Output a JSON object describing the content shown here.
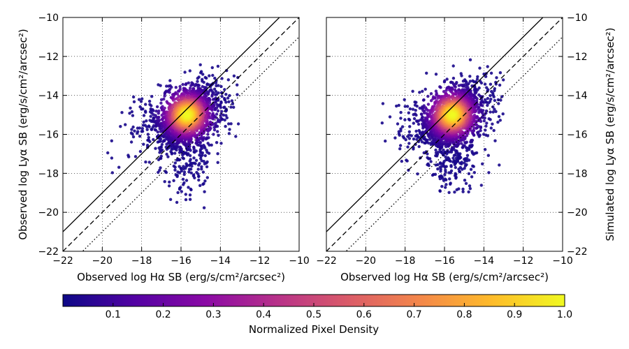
{
  "chart_data": [
    {
      "type": "scatter",
      "panel": "left",
      "xlabel": "Observed log Hα SB (erg/s/cm²/arcsec²)",
      "ylabel": "Observed log Lyα SB (erg/s/cm²/arcsec²)",
      "ylabel_side": "left",
      "xlim": [
        -22,
        -10
      ],
      "ylim": [
        -22,
        -10
      ],
      "xticks": [
        -22,
        -20,
        -18,
        -16,
        -14,
        -12,
        -10
      ],
      "yticks": [
        -22,
        -20,
        -18,
        -16,
        -14,
        -12,
        -10
      ],
      "grid": true,
      "reference_lines": [
        {
          "style": "solid",
          "offset": 1.0
        },
        {
          "style": "dashed",
          "offset": 0.0
        },
        {
          "style": "dotted",
          "offset": -1.0
        }
      ],
      "density_peak": {
        "x": -15.7,
        "y": -15.0
      },
      "point_cloud": {
        "x_range": [
          -20.0,
          -13.0
        ],
        "y_range": [
          -19.9,
          -12.4
        ]
      }
    },
    {
      "type": "scatter",
      "panel": "right",
      "xlabel": "Observed log Hα SB (erg/s/cm²/arcsec²)",
      "ylabel": "Simulated log Lyα SB (erg/s/cm²/arcsec²)",
      "ylabel_side": "right",
      "xlim": [
        -22,
        -10
      ],
      "ylim": [
        -22,
        -10
      ],
      "xticks": [
        -22,
        -20,
        -18,
        -16,
        -14,
        -12,
        -10
      ],
      "yticks": [
        -22,
        -20,
        -18,
        -16,
        -14,
        -12,
        -10
      ],
      "grid": true,
      "reference_lines": [
        {
          "style": "solid",
          "offset": 1.0
        },
        {
          "style": "dashed",
          "offset": 0.0
        },
        {
          "style": "dotted",
          "offset": -1.0
        }
      ],
      "density_peak": {
        "x": -15.6,
        "y": -15.0
      },
      "point_cloud": {
        "x_range": [
          -19.5,
          -13.0
        ],
        "y_range": [
          -19.0,
          -12.0
        ]
      }
    }
  ],
  "colorbar": {
    "label": "Normalized Pixel Density",
    "min": 0.0,
    "max": 1.0,
    "ticks": [
      "0.1",
      "0.2",
      "0.3",
      "0.4",
      "0.5",
      "0.6",
      "0.7",
      "0.8",
      "0.9",
      "1.0"
    ],
    "colormap": "plasma",
    "colors": [
      "#0d0887",
      "#5302a3",
      "#8b0aa5",
      "#b83289",
      "#db5c68",
      "#f48849",
      "#febc2a",
      "#f0f921"
    ]
  }
}
